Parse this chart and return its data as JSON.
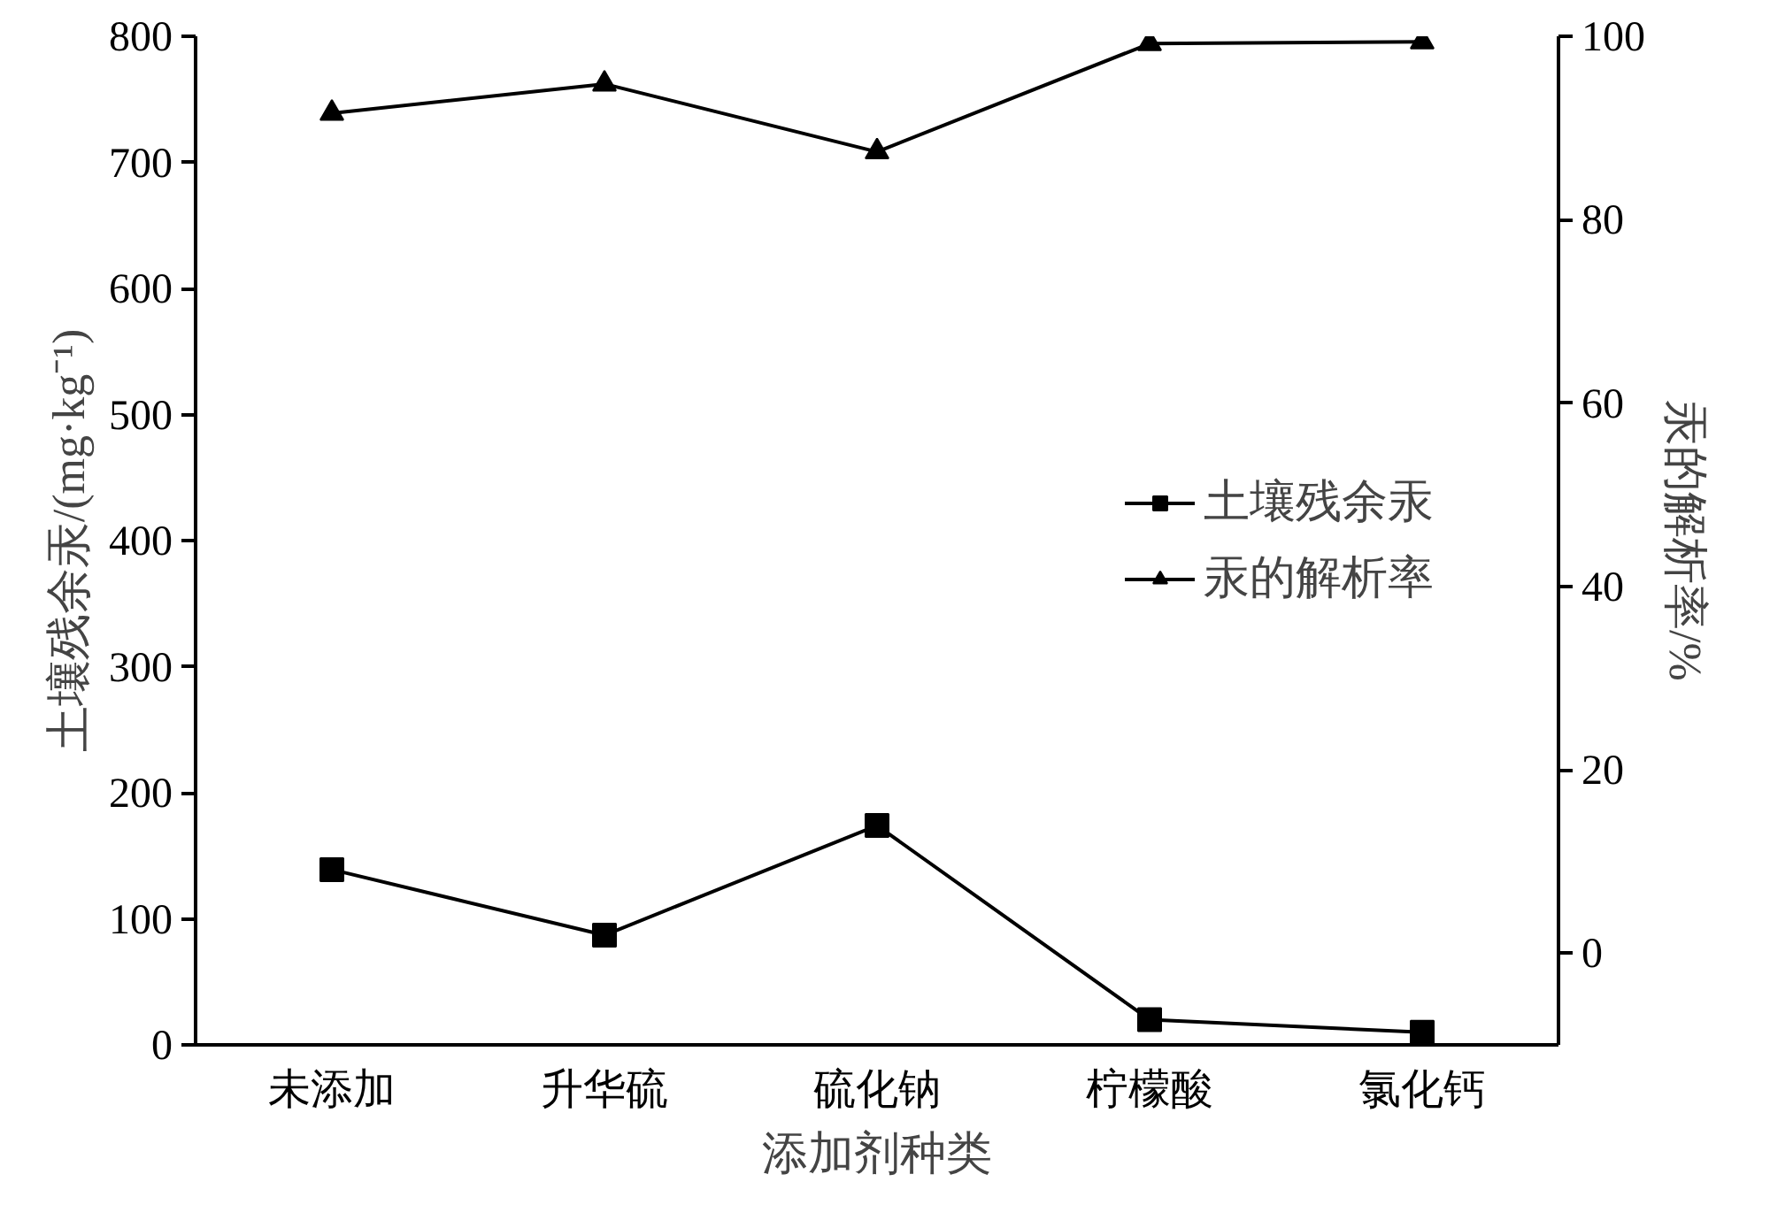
{
  "chart_data": {
    "type": "line",
    "xlabel": "添加剂种类",
    "ylabel": "土壤残余汞/(mg·kg⁻¹)",
    "y2label": "汞的解析率/%",
    "categories": [
      "未添加",
      "升华硫",
      "硫化钠",
      "柠檬酸",
      "氯化钙"
    ],
    "series": [
      {
        "name": "土壤残余汞",
        "color": "#000000",
        "marker": "square",
        "values": [
          139,
          87,
          174,
          20,
          10
        ]
      },
      {
        "name": "汞的解析率",
        "color": "#000000",
        "marker": "triangle",
        "axis": "y2",
        "values": [
          91.6,
          94.8,
          87.4,
          99.2,
          99.4
        ]
      }
    ],
    "ylim": [
      0,
      800
    ],
    "yticks": [
      0,
      100,
      200,
      300,
      400,
      500,
      600,
      700,
      800
    ],
    "y2lim": [
      -10,
      100
    ],
    "y2ticks": [
      0,
      20,
      40,
      60,
      80,
      100
    ],
    "line_style": "solid",
    "grid": false,
    "legend": "right"
  }
}
